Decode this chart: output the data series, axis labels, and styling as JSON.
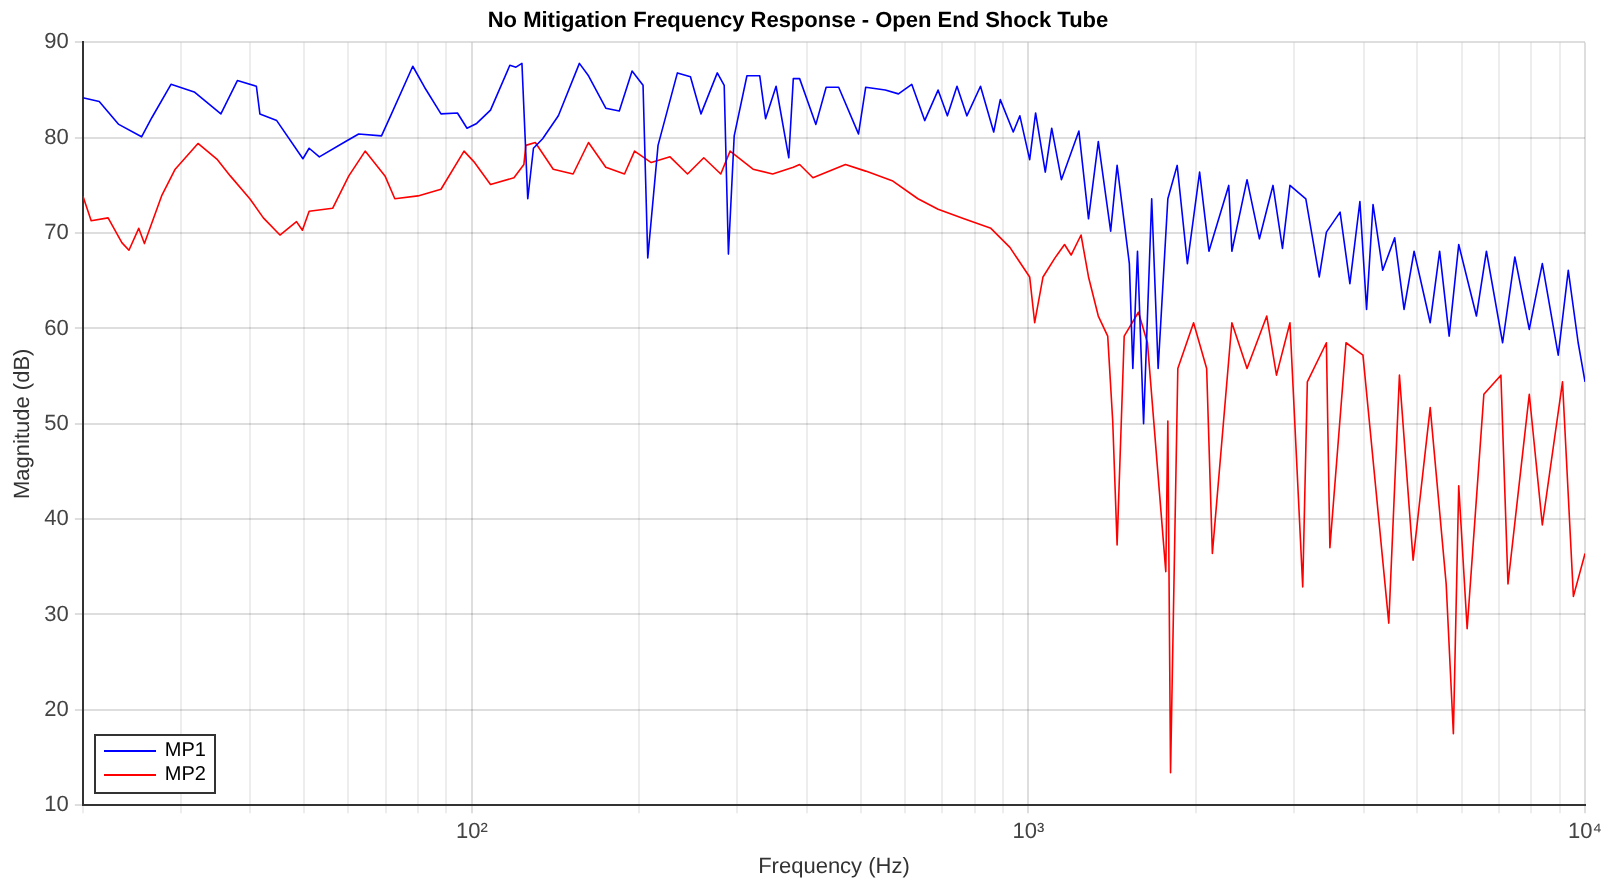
{
  "chart_data": {
    "type": "line",
    "title": "No Mitigation Frequency Response - Open End Shock Tube",
    "xlabel": "Frequency (Hz)",
    "ylabel": "Magnitude (dB)",
    "xlim": [
      20,
      10000
    ],
    "ylim": [
      10,
      90
    ],
    "xticks": [
      {
        "value": 20,
        "label": null
      },
      {
        "value": 30,
        "label": null
      },
      {
        "value": 40,
        "label": null
      },
      {
        "value": 50,
        "label": null
      },
      {
        "value": 60,
        "label": null
      },
      {
        "value": 70,
        "label": null
      },
      {
        "value": 80,
        "label": null
      },
      {
        "value": 90,
        "label": null
      },
      {
        "value": 100,
        "label": "10²"
      },
      {
        "value": 200,
        "label": null
      },
      {
        "value": 300,
        "label": null
      },
      {
        "value": 400,
        "label": null
      },
      {
        "value": 500,
        "label": null
      },
      {
        "value": 600,
        "label": null
      },
      {
        "value": 700,
        "label": null
      },
      {
        "value": 800,
        "label": null
      },
      {
        "value": 900,
        "label": null
      },
      {
        "value": 1000,
        "label": "10³"
      },
      {
        "value": 2000,
        "label": null
      },
      {
        "value": 3000,
        "label": null
      },
      {
        "value": 4000,
        "label": null
      },
      {
        "value": 5000,
        "label": null
      },
      {
        "value": 6000,
        "label": null
      },
      {
        "value": 7000,
        "label": null
      },
      {
        "value": 8000,
        "label": null
      },
      {
        "value": 9000,
        "label": null
      },
      {
        "value": 10000,
        "label": "10⁴"
      }
    ],
    "yticks": [
      10,
      20,
      30,
      40,
      50,
      60,
      70,
      80,
      90
    ],
    "log": "x",
    "grid": true,
    "legend": "bottom left",
    "series": [
      {
        "name": "MP1",
        "color": "#0000ff",
        "x": [
          20,
          21.4,
          23.2,
          25.5,
          26.6,
          28.8,
          31.7,
          35.4,
          37.9,
          41,
          41.6,
          44.6,
          49.7,
          51,
          53.2,
          59.3,
          62.6,
          68.8,
          71.7,
          78.3,
          82.2,
          88,
          94.2,
          98,
          102,
          108,
          117,
          120,
          123,
          126,
          129,
          134,
          143,
          156,
          162,
          174,
          184,
          194,
          203,
          207,
          216,
          234,
          247,
          258,
          276,
          284,
          289,
          296,
          312,
          329,
          337,
          352,
          371,
          378,
          388,
          415,
          433,
          456,
          495,
          510,
          553,
          584,
          617,
          651,
          688,
          715,
          744,
          775,
          820,
          866,
          890,
          939,
          965,
          1005,
          1030,
          1072,
          1101,
          1146,
          1232,
          1282,
          1335,
          1405,
          1443,
          1518,
          1540,
          1570,
          1610,
          1665,
          1710,
          1780,
          1850,
          1930,
          2030,
          2110,
          2290,
          2320,
          2470,
          2600,
          2750,
          2860,
          2950,
          3150,
          3330,
          3430,
          3630,
          3780,
          3940,
          4050,
          4160,
          4330,
          4550,
          4730,
          4930,
          5270,
          5480,
          5700,
          5930,
          6380,
          6650,
          7110,
          7480,
          7940,
          8380,
          8950,
          9330,
          9720,
          10000
        ],
        "values": [
          84.2,
          83.8,
          81.4,
          80.1,
          82.1,
          85.6,
          84.8,
          82.5,
          86.0,
          85.4,
          82.5,
          81.8,
          77.8,
          78.9,
          78.0,
          79.6,
          80.4,
          80.2,
          82.5,
          87.5,
          85.3,
          82.5,
          82.6,
          81.0,
          81.5,
          82.9,
          87.6,
          87.4,
          87.8,
          73.6,
          78.9,
          79.9,
          82.3,
          87.8,
          86.5,
          83.1,
          82.8,
          87.0,
          85.5,
          67.4,
          79.2,
          86.8,
          86.4,
          82.5,
          86.8,
          85.5,
          67.8,
          80.2,
          86.5,
          86.5,
          82.0,
          85.4,
          77.9,
          86.2,
          86.2,
          81.4,
          85.3,
          85.3,
          80.4,
          85.3,
          85.0,
          84.6,
          85.6,
          81.8,
          85.0,
          82.3,
          85.4,
          82.3,
          85.4,
          80.6,
          84.0,
          80.6,
          82.3,
          77.7,
          82.6,
          76.4,
          81.0,
          75.6,
          80.7,
          71.5,
          79.6,
          70.2,
          77.1,
          66.8,
          55.8,
          68.1,
          50,
          73.6,
          55.8,
          73.6,
          77.1,
          66.8,
          76.4,
          68.1,
          75.0,
          68.1,
          75.6,
          69.4,
          75.0,
          68.4,
          75.0,
          73.6,
          65.4,
          70.1,
          72.2,
          64.7,
          73.3,
          62.0,
          73.0,
          66.1,
          69.5,
          62.0,
          68.1,
          60.6,
          68.1,
          59.2,
          68.8,
          61.3,
          68.1,
          58.5,
          67.5,
          59.9,
          66.8,
          57.2,
          66.1,
          58.5,
          54.4
        ]
      },
      {
        "name": "MP2",
        "color": "#ff0000",
        "x": [
          20,
          20.7,
          22.2,
          23.5,
          24.2,
          25.2,
          25.8,
          27.7,
          29.3,
          32.2,
          34.9,
          36.8,
          39.9,
          42.2,
          45.2,
          48.4,
          49.6,
          51,
          56.2,
          60.1,
          64.3,
          69.8,
          72.7,
          80,
          88,
          96.8,
          100.8,
          108,
          119,
          124,
          125,
          130,
          140,
          152,
          162,
          174,
          188,
          196,
          210,
          227,
          244,
          261,
          280,
          291,
          320,
          347,
          378,
          388,
          410,
          469,
          510,
          569,
          633,
          688,
          766,
          856,
          926,
          1005,
          1026,
          1062,
          1116,
          1161,
          1193,
          1243,
          1282,
          1335,
          1388,
          1417,
          1443,
          1486,
          1576,
          1636,
          1765,
          1780,
          1800,
          1855,
          1980,
          2090,
          2140,
          2320,
          2470,
          2680,
          2790,
          2950,
          3110,
          3170,
          3430,
          3480,
          3720,
          3990,
          4440,
          4640,
          4910,
          5270,
          5630,
          5800,
          5930,
          6140,
          6580,
          7060,
          7270,
          7940,
          8380,
          9110,
          9530,
          10000
        ],
        "values": [
          73.9,
          71.3,
          71.6,
          69.0,
          68.2,
          70.5,
          68.9,
          73.9,
          76.7,
          79.4,
          77.7,
          76.0,
          73.6,
          71.6,
          69.8,
          71.2,
          70.3,
          72.3,
          72.6,
          76.0,
          78.6,
          76.0,
          73.6,
          73.9,
          74.6,
          78.6,
          77.5,
          75.1,
          75.8,
          77.2,
          79.2,
          79.5,
          76.7,
          76.2,
          79.5,
          76.9,
          76.2,
          78.6,
          77.4,
          78.0,
          76.2,
          77.9,
          76.2,
          78.6,
          76.7,
          76.2,
          76.9,
          77.2,
          75.8,
          77.2,
          76.5,
          75.5,
          73.6,
          72.5,
          71.5,
          70.5,
          68.5,
          65.4,
          60.6,
          65.4,
          67.4,
          68.8,
          67.7,
          69.8,
          65.4,
          61.3,
          59.2,
          50.3,
          37.3,
          59.2,
          61.7,
          58.5,
          34.5,
          50.3,
          13.4,
          55.8,
          60.6,
          55.8,
          36.4,
          60.6,
          55.8,
          61.3,
          55.1,
          60.6,
          32.9,
          54.4,
          58.5,
          37.0,
          58.5,
          57.2,
          29.1,
          55.1,
          35.7,
          51.7,
          33.2,
          17.5,
          43.5,
          28.5,
          53.1,
          55.1,
          33.2,
          53.1,
          39.4,
          54.4,
          31.9,
          36.4
        ]
      }
    ]
  }
}
